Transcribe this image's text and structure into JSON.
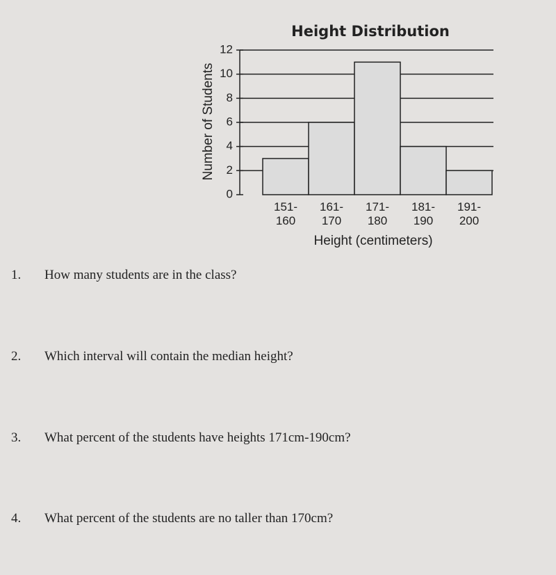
{
  "chart_data": {
    "type": "bar",
    "title": "Height Distribution",
    "x_label": "Height (centimeters)",
    "y_label": "Number of Students",
    "categories": [
      "151- 160",
      "161- 170",
      "171- 180",
      "181- 190",
      "191- 200"
    ],
    "values": [
      3,
      6,
      11,
      4,
      2
    ],
    "color": "#dcdcdc",
    "ylim": [
      0,
      12
    ],
    "yticks": [
      0,
      2,
      4,
      6,
      8,
      10,
      12
    ],
    "grid": true
  },
  "questions": [
    {
      "number": "1.",
      "text": "How many students are in the class?"
    },
    {
      "number": "2.",
      "text": "Which interval will contain the median height?"
    },
    {
      "number": "3.",
      "text": "What percent of the students have heights 171cm-190cm?"
    },
    {
      "number": "4.",
      "text": "What percent of the students are no taller than 170cm?"
    }
  ]
}
